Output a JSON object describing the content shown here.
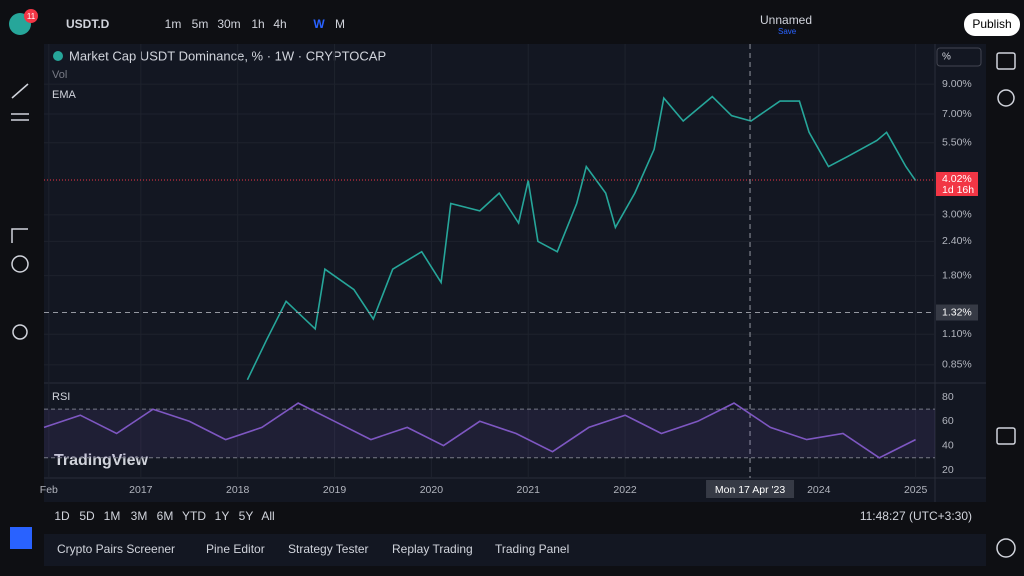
{
  "top_bar": {
    "badge": "11",
    "symbol": "USDT.D",
    "intervals": [
      "1m",
      "5m",
      "30m",
      "1h",
      "4h",
      "W",
      "M"
    ],
    "layout_name": "Unnamed",
    "save": "Save",
    "publish": "Publish"
  },
  "chart_data": [
    {
      "type": "line",
      "title": "Market Cap USDT Dominance, % · 1W · CRYPTOCAP",
      "indicators": [
        "Vol",
        "EMA"
      ],
      "scale_unit": "%",
      "x": [
        2018.1,
        2018.3,
        2018.5,
        2018.8,
        2018.9,
        2019.2,
        2019.4,
        2019.6,
        2019.9,
        2020.1,
        2020.2,
        2020.5,
        2020.7,
        2020.9,
        2021.0,
        2021.1,
        2021.3,
        2021.5,
        2021.6,
        2021.8,
        2021.9,
        2022.1,
        2022.3,
        2022.4,
        2022.6,
        2022.9,
        2023.1,
        2023.3,
        2023.6,
        2023.8,
        2023.9,
        2024.1,
        2024.3,
        2024.6,
        2024.7,
        2024.9,
        2025.0
      ],
      "values": [
        0.75,
        1.05,
        1.45,
        1.15,
        1.9,
        1.6,
        1.25,
        1.9,
        2.2,
        1.7,
        3.3,
        3.1,
        3.6,
        2.8,
        4.0,
        2.4,
        2.2,
        3.3,
        4.5,
        3.6,
        2.7,
        3.6,
        5.2,
        8.0,
        6.6,
        8.1,
        6.9,
        6.6,
        7.8,
        7.8,
        6.0,
        4.5,
        4.9,
        5.6,
        6.0,
        4.5,
        4.0
      ],
      "color": "#26a69a",
      "log_scale": true,
      "xlim": [
        2016.0,
        2025.2
      ],
      "xticks": [
        {
          "value": 2016.05,
          "label": "Feb"
        },
        2017,
        2018,
        2019,
        2020,
        2021,
        2022,
        2024,
        2025
      ],
      "ylim": [
        0.73,
        12.5
      ],
      "yticks": [
        {
          "value": 0.85,
          "label": "0.85%"
        },
        {
          "value": 1.1,
          "label": "1.10%"
        },
        {
          "value": 1.8,
          "label": "1.80%"
        },
        {
          "value": 2.4,
          "label": "2.40%"
        },
        {
          "value": 3,
          "label": "3.00%"
        },
        {
          "value": 5.5,
          "label": "5.50%"
        },
        {
          "value": 7,
          "label": "7.00%"
        },
        {
          "value": 9,
          "label": "9.00%"
        }
      ],
      "last_value": {
        "value": 4.02,
        "label": "4.02%"
      },
      "countdown": "1d 16h",
      "crosshair": {
        "y": {
          "value": 1.32,
          "label": "1.32%"
        },
        "x": {
          "value": 2023.29,
          "label": "Mon 17 Apr '23"
        }
      }
    },
    {
      "type": "line",
      "title": "RSI",
      "x": [
        2016.0,
        2016.375,
        2016.75,
        2017.125,
        2017.5,
        2017.875,
        2018.25,
        2018.625,
        2019.0,
        2019.375,
        2019.75,
        2020.125,
        2020.5,
        2020.875,
        2021.25,
        2021.625,
        2022.0,
        2022.375,
        2022.75,
        2023.125,
        2023.5,
        2023.875,
        2024.25,
        2024.625,
        2025.0
      ],
      "values": [
        55,
        65,
        50,
        70,
        60,
        45,
        55,
        75,
        60,
        45,
        55,
        40,
        60,
        50,
        35,
        55,
        65,
        50,
        60,
        75,
        55,
        45,
        50,
        30,
        45
      ],
      "color": "#7e57c2",
      "ylim": [
        13.4,
        91.5
      ],
      "yticks": [
        20,
        40,
        60,
        80
      ],
      "band": [
        30,
        70
      ]
    }
  ],
  "bottom_bar": {
    "ranges": [
      "1D",
      "5D",
      "1M",
      "3M",
      "6M",
      "YTD",
      "1Y",
      "5Y",
      "All"
    ],
    "clock": "11:48:27 (UTC+3:30)"
  },
  "tabs": [
    "Crypto Pairs Screener",
    "Pine Editor",
    "Strategy Tester",
    "Replay Trading",
    "Trading Panel"
  ],
  "watermark": "TradingView"
}
